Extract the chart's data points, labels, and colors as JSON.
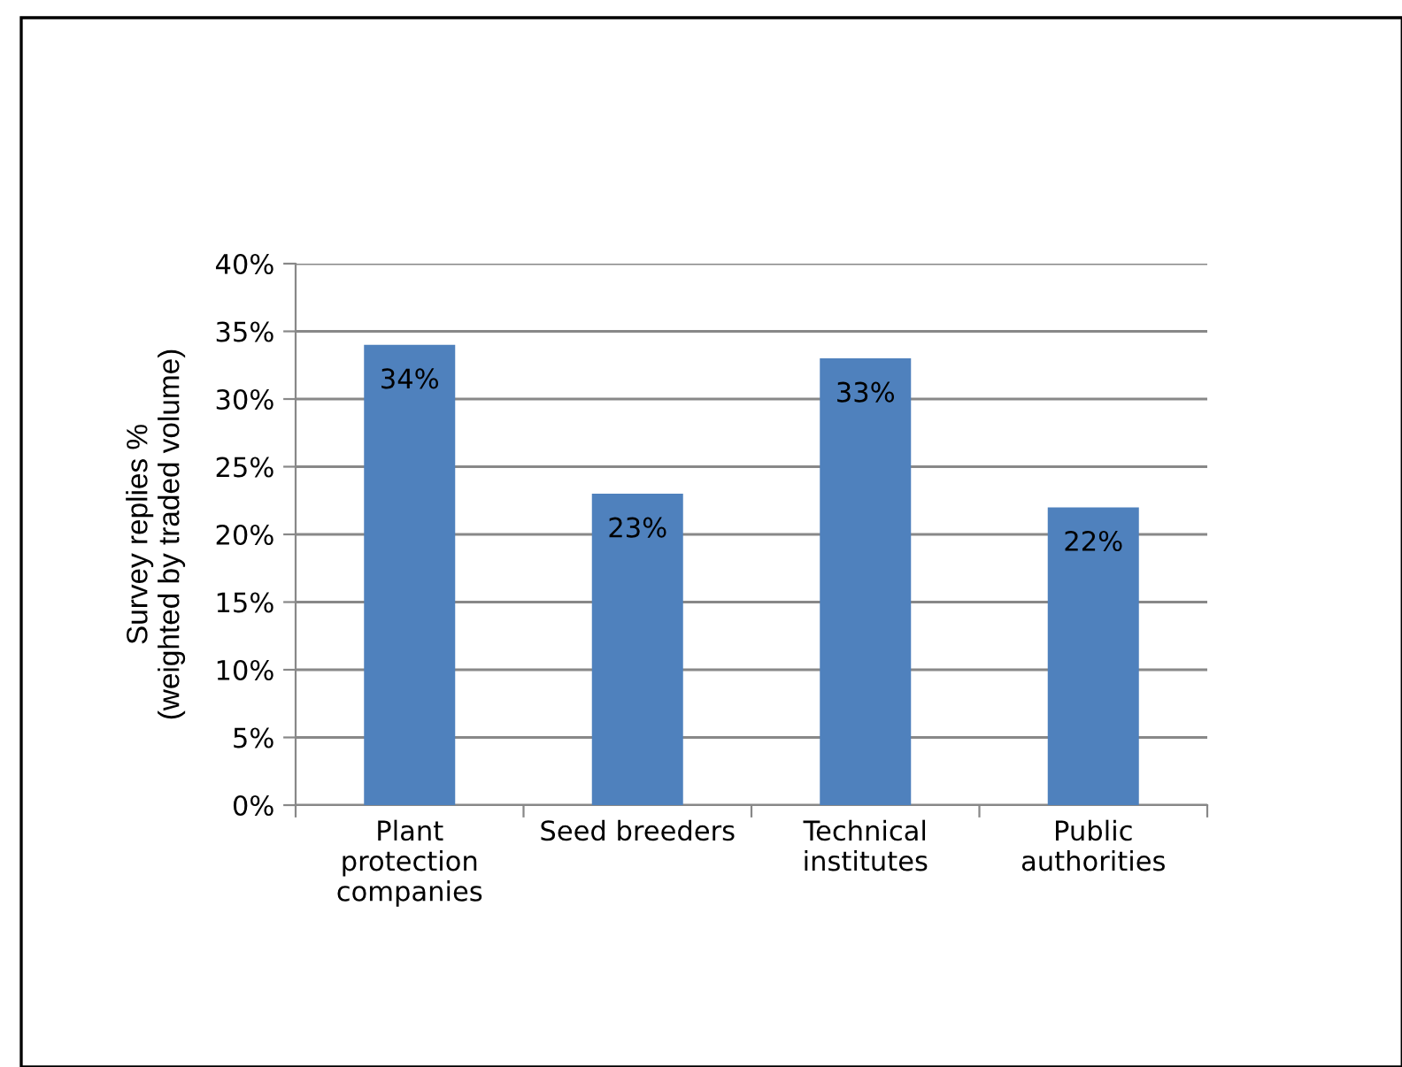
{
  "chart_data": {
    "type": "bar",
    "ylabel": "Survey replies %\n(weighted by traded volume)",
    "categories": [
      "Plant\nprotection\ncompanies",
      "Seed breeders",
      "Technical\ninstitutes",
      "Public\nauthorities"
    ],
    "values": [
      34,
      23,
      33,
      22
    ],
    "value_labels": [
      "34%",
      "23%",
      "33%",
      "22%"
    ],
    "color": "#4f81bd",
    "ylim": [
      0,
      40
    ],
    "yticks": [
      {
        "value": 0,
        "label": "0%"
      },
      {
        "value": 5,
        "label": "5%"
      },
      {
        "value": 10,
        "label": "10%"
      },
      {
        "value": 15,
        "label": "15%"
      },
      {
        "value": 20,
        "label": "20%"
      },
      {
        "value": 25,
        "label": "25%"
      },
      {
        "value": 30,
        "label": "30%"
      },
      {
        "value": 35,
        "label": "35%"
      },
      {
        "value": 40,
        "label": "40%"
      }
    ],
    "grid": "y",
    "legend": false
  }
}
